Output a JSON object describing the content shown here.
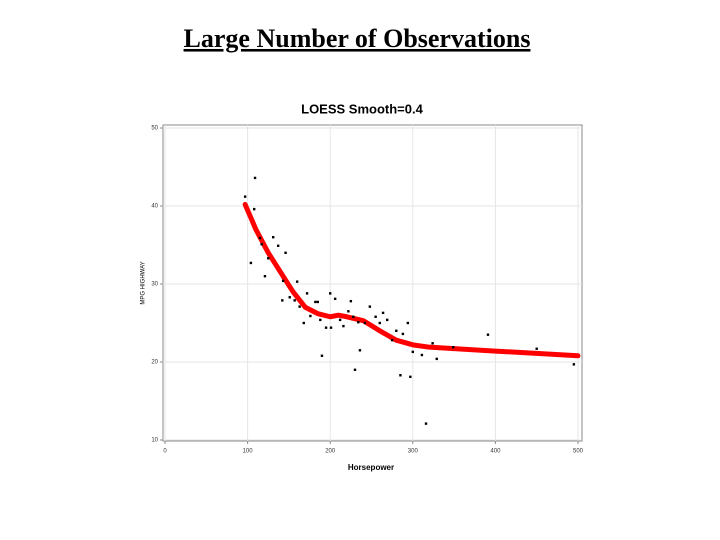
{
  "slide_title": "Large Number of Observations",
  "chart_data": {
    "type": "scatter",
    "title": "LOESS Smooth=0.4",
    "x_label": "Horsepower",
    "y_label": "MPG HIGHWAY",
    "xlim": [
      0,
      500
    ],
    "ylim": [
      10,
      50
    ],
    "xticks": [
      0,
      100,
      200,
      300,
      400,
      500
    ],
    "yticks": [
      10,
      20,
      30,
      40,
      50
    ],
    "grid": true,
    "points": {
      "color": "#000000",
      "x": [
        97,
        109,
        104,
        108,
        115,
        117,
        121,
        125,
        131,
        137,
        143,
        146,
        142,
        151,
        157,
        160,
        163,
        168,
        172,
        176,
        182,
        185,
        188,
        190,
        195,
        200,
        201,
        206,
        212,
        216,
        222,
        225,
        228,
        230,
        234,
        236,
        242,
        248,
        255,
        260,
        264,
        269,
        275,
        280,
        285,
        288,
        294,
        297,
        300,
        311,
        316,
        324,
        329,
        349,
        391,
        450,
        495
      ],
      "y": [
        41.2,
        43.6,
        32.7,
        39.6,
        35.9,
        35.1,
        31.0,
        33.3,
        36.0,
        34.9,
        30.4,
        34.0,
        27.9,
        28.3,
        27.9,
        30.3,
        27.1,
        25.0,
        28.8,
        25.9,
        27.7,
        27.7,
        25.4,
        20.8,
        24.4,
        28.8,
        24.4,
        28.1,
        25.4,
        24.6,
        26.5,
        27.8,
        25.8,
        19.0,
        25.1,
        21.5,
        25.0,
        27.1,
        25.8,
        25.0,
        26.3,
        25.4,
        22.8,
        24.0,
        18.3,
        23.6,
        25.0,
        18.1,
        21.3,
        20.9,
        12.1,
        22.4,
        20.4,
        21.9,
        23.5,
        21.7,
        19.7
      ]
    },
    "smooth": {
      "color": "#ff0000",
      "x": [
        97,
        110,
        125,
        140,
        155,
        170,
        185,
        200,
        210,
        220,
        240,
        260,
        280,
        300,
        320,
        400,
        500
      ],
      "y": [
        40.2,
        37,
        34,
        31.5,
        29,
        27,
        26.2,
        25.8,
        26,
        25.8,
        25.3,
        24,
        22.8,
        22.2,
        21.9,
        21.4,
        20.8
      ]
    }
  }
}
